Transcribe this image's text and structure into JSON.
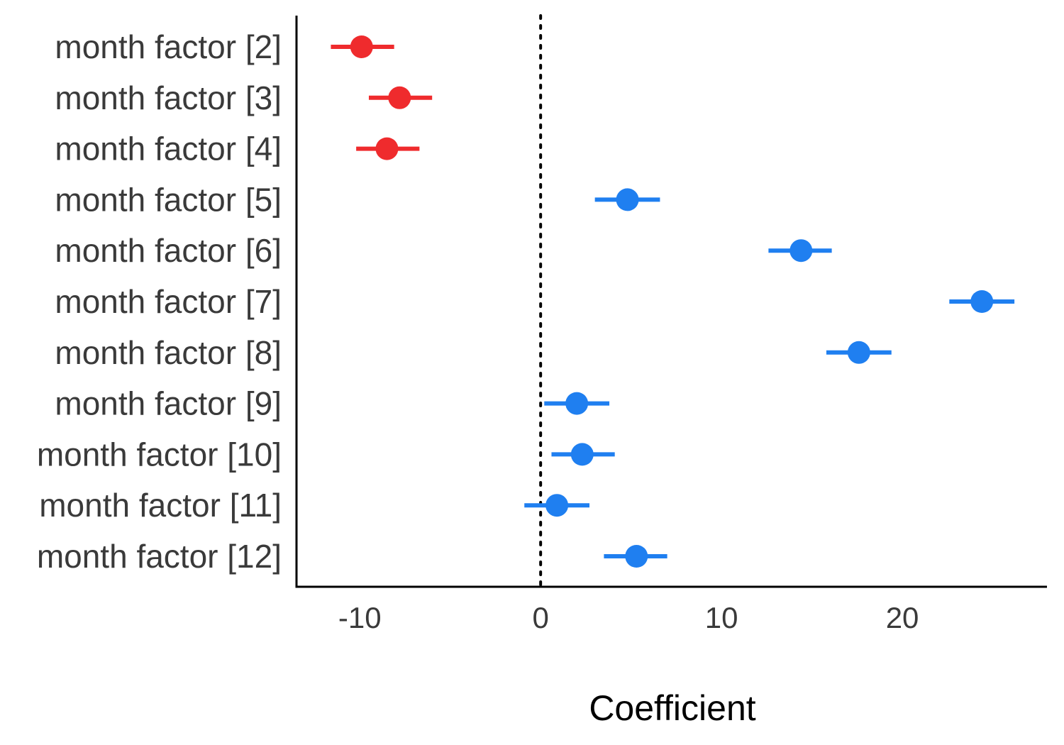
{
  "chart_data": {
    "type": "scatter",
    "subtype": "coefficient-plot",
    "title": "",
    "xlabel": "Coefficient",
    "ylabel": "",
    "xlim": [
      -13.5,
      28
    ],
    "xticks": [
      -10,
      0,
      10,
      20
    ],
    "xtick_labels": [
      "-10",
      "0",
      "10",
      "20"
    ],
    "reference_line": {
      "x": 0,
      "style": "dotted"
    },
    "grid": false,
    "legend": "none",
    "colors": {
      "negative": "#ef2b2d",
      "positive": "#1f7ff0"
    },
    "terms": [
      "month factor [2]",
      "month factor [3]",
      "month factor [4]",
      "month factor [5]",
      "month factor [6]",
      "month factor [7]",
      "month factor [8]",
      "month factor [9]",
      "month factor [10]",
      "month factor [11]",
      "month factor [12]"
    ],
    "estimates": [
      -9.9,
      -7.8,
      -8.5,
      4.8,
      14.4,
      24.4,
      17.6,
      2.0,
      2.3,
      0.9,
      5.3
    ],
    "conf_low": [
      -11.6,
      -9.5,
      -10.2,
      3.0,
      12.6,
      22.6,
      15.8,
      0.2,
      0.6,
      -0.9,
      3.5
    ],
    "conf_high": [
      -8.1,
      -6.0,
      -6.7,
      6.6,
      16.1,
      26.2,
      19.4,
      3.8,
      4.1,
      2.7,
      7.0
    ]
  }
}
